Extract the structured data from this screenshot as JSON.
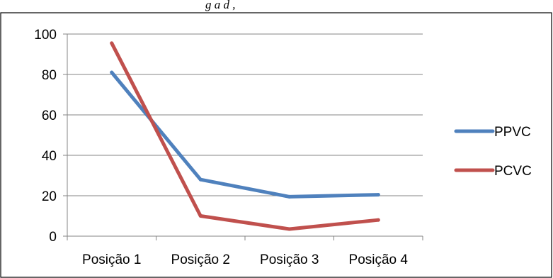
{
  "chart_data": {
    "type": "line",
    "top_text": "g           a d     ,",
    "categories": [
      "Posição 1",
      "Posição 2",
      "Posição 3",
      "Posição 4"
    ],
    "series": [
      {
        "name": "PPVC",
        "color": "#4f81bd",
        "values": [
          81,
          28,
          19.5,
          20.5
        ]
      },
      {
        "name": "PCVC",
        "color": "#c0504d",
        "values": [
          95.5,
          10,
          3.5,
          8
        ]
      }
    ],
    "ylim": [
      0,
      100
    ],
    "yticks": [
      0,
      20,
      40,
      60,
      80,
      100
    ],
    "ytick_labels": [
      "0",
      "20",
      "40",
      "60",
      "80",
      "100"
    ],
    "grid": true,
    "legend_position": "right"
  }
}
